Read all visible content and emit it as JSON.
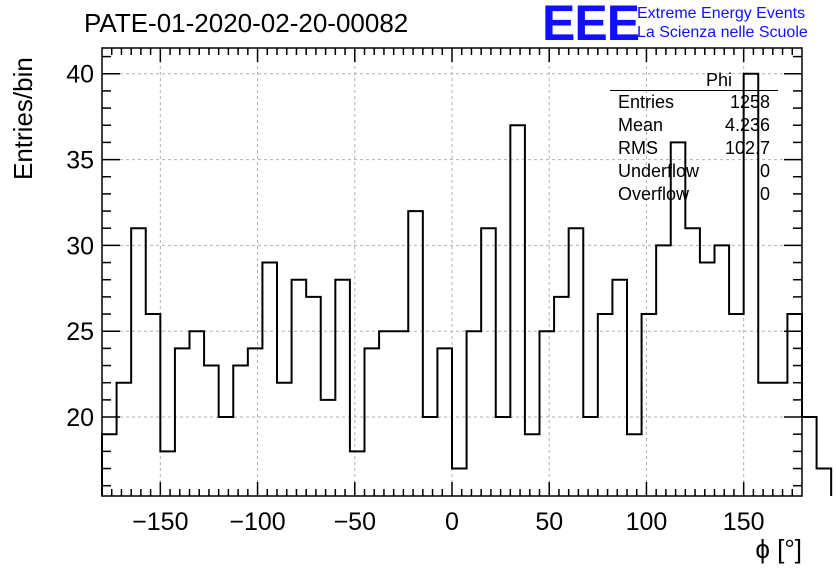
{
  "header": {
    "title": "PATE-01-2020-02-20-00082",
    "logo_mark": "EEE",
    "logo_line1": "Extreme Energy Events",
    "logo_line2": "La Scienza nelle Scuole"
  },
  "stats_box": {
    "name": "Phi",
    "rows": [
      {
        "label": "Entries",
        "value": "1258"
      },
      {
        "label": "Mean",
        "value": "4.236"
      },
      {
        "label": "RMS",
        "value": "102.7"
      },
      {
        "label": "Underflow",
        "value": "0"
      },
      {
        "label": "Overflow",
        "value": "0"
      }
    ]
  },
  "chart_data": {
    "type": "bar",
    "title": "PATE-01-2020-02-20-00082",
    "xlabel": "ϕ [°]",
    "ylabel": "Entries/bin",
    "xlim": [
      -180,
      180
    ],
    "ylim": [
      15.4,
      41.5
    ],
    "bin_width": 7.5,
    "x_start": -180,
    "values": [
      19,
      22,
      31,
      26,
      18,
      24,
      25,
      23,
      20,
      23,
      24,
      29,
      22,
      28,
      27,
      21,
      28,
      18,
      24,
      25,
      25,
      32,
      20,
      24,
      17,
      25,
      31,
      20,
      37,
      19,
      25,
      27,
      31,
      20,
      26,
      28,
      19,
      26,
      30,
      36,
      31,
      29,
      30,
      26,
      40,
      22,
      22,
      26,
      20,
      17
    ],
    "xticks": [
      -150,
      -100,
      -50,
      0,
      50,
      100,
      150
    ],
    "yticks": [
      20,
      25,
      30,
      35,
      40
    ],
    "grid": true
  }
}
